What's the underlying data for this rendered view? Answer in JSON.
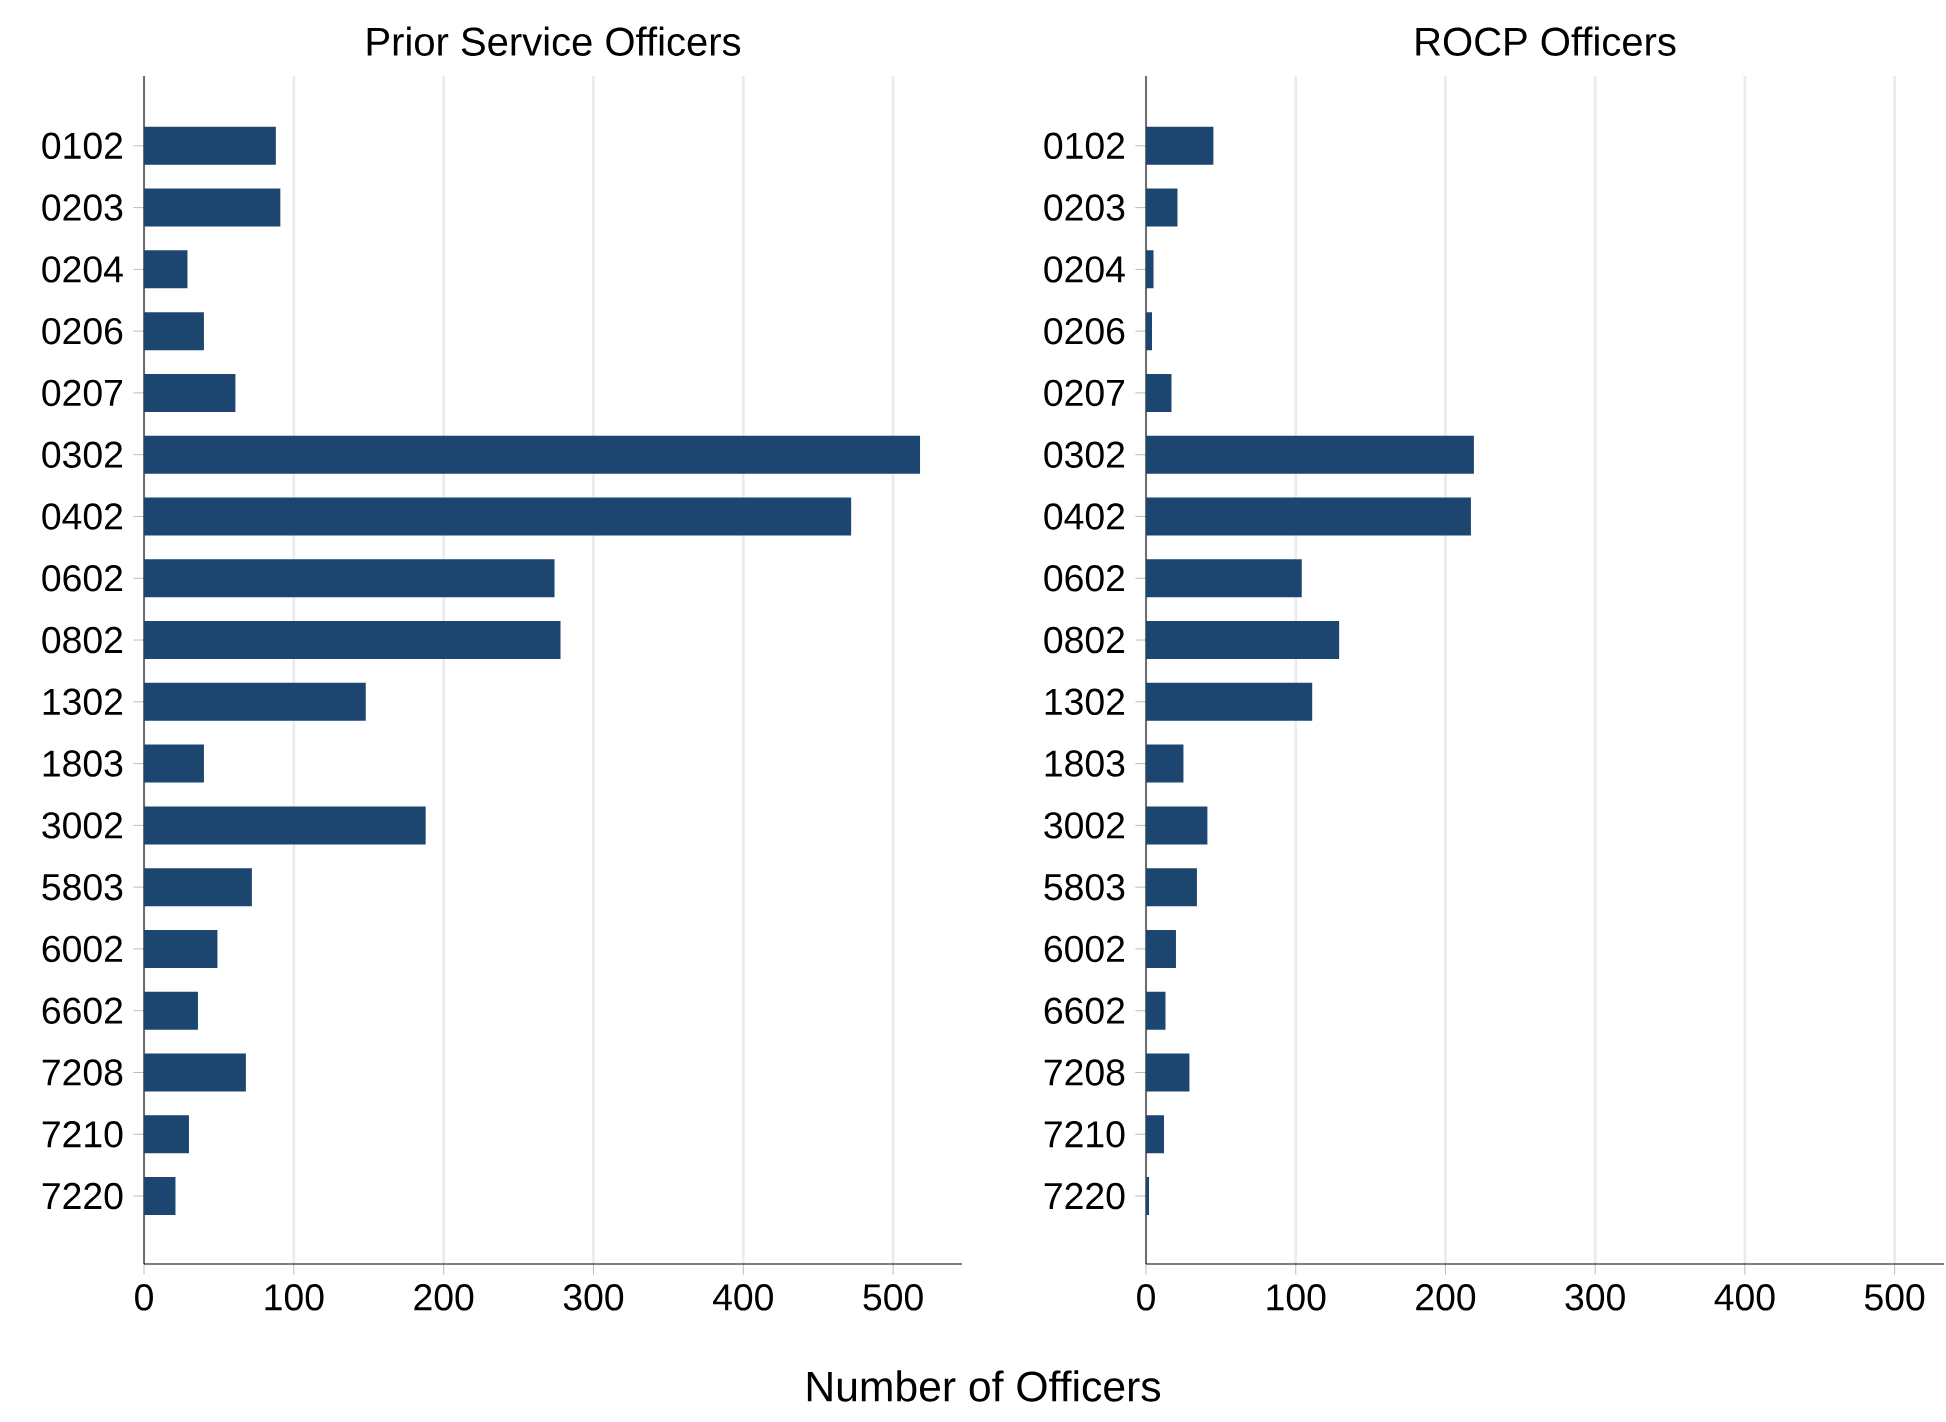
{
  "chart_data": [
    {
      "type": "bar",
      "orientation": "horizontal",
      "title": "Prior Service Officers",
      "xlabel": "Number of Officers",
      "categories": [
        "0102",
        "0203",
        "0204",
        "0206",
        "0207",
        "0302",
        "0402",
        "0602",
        "0802",
        "1302",
        "1803",
        "3002",
        "5803",
        "6002",
        "6602",
        "7208",
        "7210",
        "7220"
      ],
      "values": [
        88,
        91,
        29,
        40,
        61,
        518,
        472,
        274,
        278,
        148,
        40,
        188,
        72,
        49,
        36,
        68,
        30,
        21
      ],
      "color": "#1c4670",
      "xlim": [
        0,
        546
      ],
      "xticks": [
        0,
        100,
        200,
        300,
        400,
        500
      ],
      "grid": "x"
    },
    {
      "type": "bar",
      "orientation": "horizontal",
      "title": "ROCP Officers",
      "categories": [
        "0102",
        "0203",
        "0204",
        "0206",
        "0207",
        "0302",
        "0402",
        "0602",
        "0802",
        "1302",
        "1803",
        "3002",
        "5803",
        "6002",
        "6602",
        "7208",
        "7210",
        "7220"
      ],
      "values": [
        45,
        21,
        5,
        4,
        17,
        219,
        217,
        104,
        129,
        111,
        25,
        41,
        34,
        20,
        13,
        29,
        12,
        2
      ],
      "color": "#1c4670",
      "xlim": [
        0,
        533
      ],
      "xticks": [
        0,
        100,
        200,
        300,
        400,
        500
      ],
      "grid": "x"
    }
  ]
}
